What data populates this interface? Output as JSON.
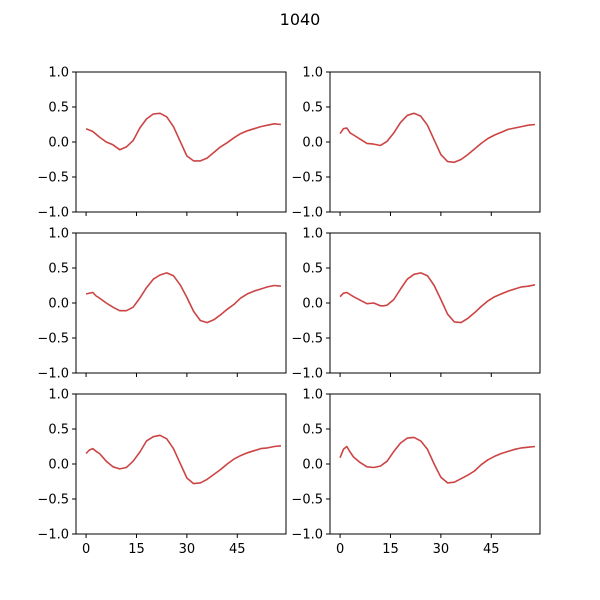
{
  "chart_data": [
    {
      "type": "line",
      "title": "1040",
      "xlim": [
        -3,
        59.5
      ],
      "ylim": [
        -1.0,
        1.0
      ],
      "yticks": [
        1.0,
        0.5,
        0.0,
        -0.5,
        -1.0
      ],
      "ytick_labels": [
        "1.0",
        "0.5",
        "0.0",
        "−0.5",
        "−1.0"
      ],
      "xticks": [
        0,
        15,
        30,
        45
      ],
      "xtick_labels": [
        "0",
        "15",
        "30",
        "45"
      ],
      "color": "#cc4444",
      "panels": [
        {
          "row": 0,
          "col": 0,
          "x": [
            0,
            2,
            4,
            6,
            8,
            10,
            12,
            14,
            16,
            18,
            20,
            22,
            24,
            26,
            28,
            30,
            32,
            34,
            36,
            38,
            40,
            42,
            44,
            46,
            48,
            50,
            52,
            54,
            56,
            58
          ],
          "y": [
            0.19,
            0.15,
            0.07,
            0.0,
            -0.04,
            -0.11,
            -0.07,
            0.02,
            0.2,
            0.33,
            0.4,
            0.41,
            0.36,
            0.22,
            0.01,
            -0.2,
            -0.27,
            -0.27,
            -0.23,
            -0.15,
            -0.07,
            -0.01,
            0.06,
            0.12,
            0.16,
            0.19,
            0.22,
            0.24,
            0.26,
            0.25
          ]
        },
        {
          "row": 0,
          "col": 1,
          "x": [
            0,
            1,
            2,
            3,
            4,
            6,
            8,
            10,
            12,
            14,
            16,
            18,
            20,
            22,
            24,
            26,
            28,
            30,
            32,
            34,
            36,
            38,
            40,
            42,
            44,
            46,
            48,
            50,
            52,
            54,
            56,
            58
          ],
          "y": [
            0.12,
            0.19,
            0.2,
            0.13,
            0.1,
            0.04,
            -0.02,
            -0.03,
            -0.05,
            0.01,
            0.13,
            0.28,
            0.38,
            0.41,
            0.37,
            0.24,
            0.03,
            -0.18,
            -0.28,
            -0.29,
            -0.25,
            -0.18,
            -0.1,
            -0.02,
            0.05,
            0.1,
            0.14,
            0.18,
            0.2,
            0.22,
            0.24,
            0.25
          ]
        },
        {
          "row": 1,
          "col": 0,
          "x": [
            0,
            2,
            3,
            4,
            6,
            8,
            10,
            12,
            14,
            16,
            18,
            20,
            22,
            24,
            26,
            28,
            30,
            32,
            34,
            36,
            38,
            40,
            42,
            44,
            46,
            48,
            50,
            52,
            54,
            56,
            58
          ],
          "y": [
            0.13,
            0.15,
            0.1,
            0.07,
            0.0,
            -0.06,
            -0.11,
            -0.11,
            -0.06,
            0.07,
            0.22,
            0.34,
            0.4,
            0.43,
            0.39,
            0.26,
            0.08,
            -0.12,
            -0.25,
            -0.28,
            -0.24,
            -0.17,
            -0.09,
            -0.02,
            0.07,
            0.13,
            0.17,
            0.2,
            0.23,
            0.25,
            0.24
          ]
        },
        {
          "row": 1,
          "col": 1,
          "x": [
            0,
            1,
            2,
            4,
            6,
            8,
            10,
            12,
            13,
            14,
            16,
            18,
            20,
            22,
            24,
            26,
            28,
            30,
            32,
            34,
            36,
            38,
            40,
            42,
            44,
            46,
            48,
            50,
            52,
            54,
            56,
            58
          ],
          "y": [
            0.09,
            0.14,
            0.15,
            0.09,
            0.04,
            -0.01,
            0.0,
            -0.04,
            -0.04,
            -0.03,
            0.05,
            0.2,
            0.34,
            0.41,
            0.43,
            0.39,
            0.25,
            0.05,
            -0.16,
            -0.27,
            -0.28,
            -0.22,
            -0.14,
            -0.05,
            0.03,
            0.09,
            0.13,
            0.17,
            0.2,
            0.23,
            0.24,
            0.26
          ]
        },
        {
          "row": 2,
          "col": 0,
          "x": [
            0,
            1,
            2,
            3,
            4,
            6,
            8,
            10,
            12,
            14,
            16,
            18,
            20,
            22,
            24,
            26,
            28,
            30,
            32,
            34,
            36,
            38,
            40,
            42,
            44,
            46,
            48,
            50,
            52,
            54,
            56,
            58
          ],
          "y": [
            0.15,
            0.2,
            0.22,
            0.18,
            0.15,
            0.04,
            -0.04,
            -0.07,
            -0.05,
            0.04,
            0.17,
            0.33,
            0.39,
            0.41,
            0.36,
            0.22,
            0.01,
            -0.2,
            -0.28,
            -0.27,
            -0.22,
            -0.15,
            -0.08,
            0.0,
            0.07,
            0.12,
            0.16,
            0.19,
            0.22,
            0.23,
            0.25,
            0.26
          ]
        },
        {
          "row": 2,
          "col": 1,
          "x": [
            0,
            1,
            2,
            3,
            4,
            6,
            8,
            10,
            12,
            14,
            16,
            18,
            20,
            22,
            24,
            26,
            28,
            30,
            32,
            34,
            36,
            38,
            40,
            42,
            44,
            46,
            48,
            50,
            52,
            54,
            56,
            58
          ],
          "y": [
            0.09,
            0.21,
            0.25,
            0.17,
            0.1,
            0.02,
            -0.04,
            -0.05,
            -0.03,
            0.04,
            0.18,
            0.3,
            0.37,
            0.38,
            0.33,
            0.21,
            0.0,
            -0.19,
            -0.27,
            -0.26,
            -0.21,
            -0.16,
            -0.1,
            -0.01,
            0.06,
            0.11,
            0.15,
            0.18,
            0.21,
            0.23,
            0.24,
            0.25
          ]
        }
      ]
    }
  ]
}
